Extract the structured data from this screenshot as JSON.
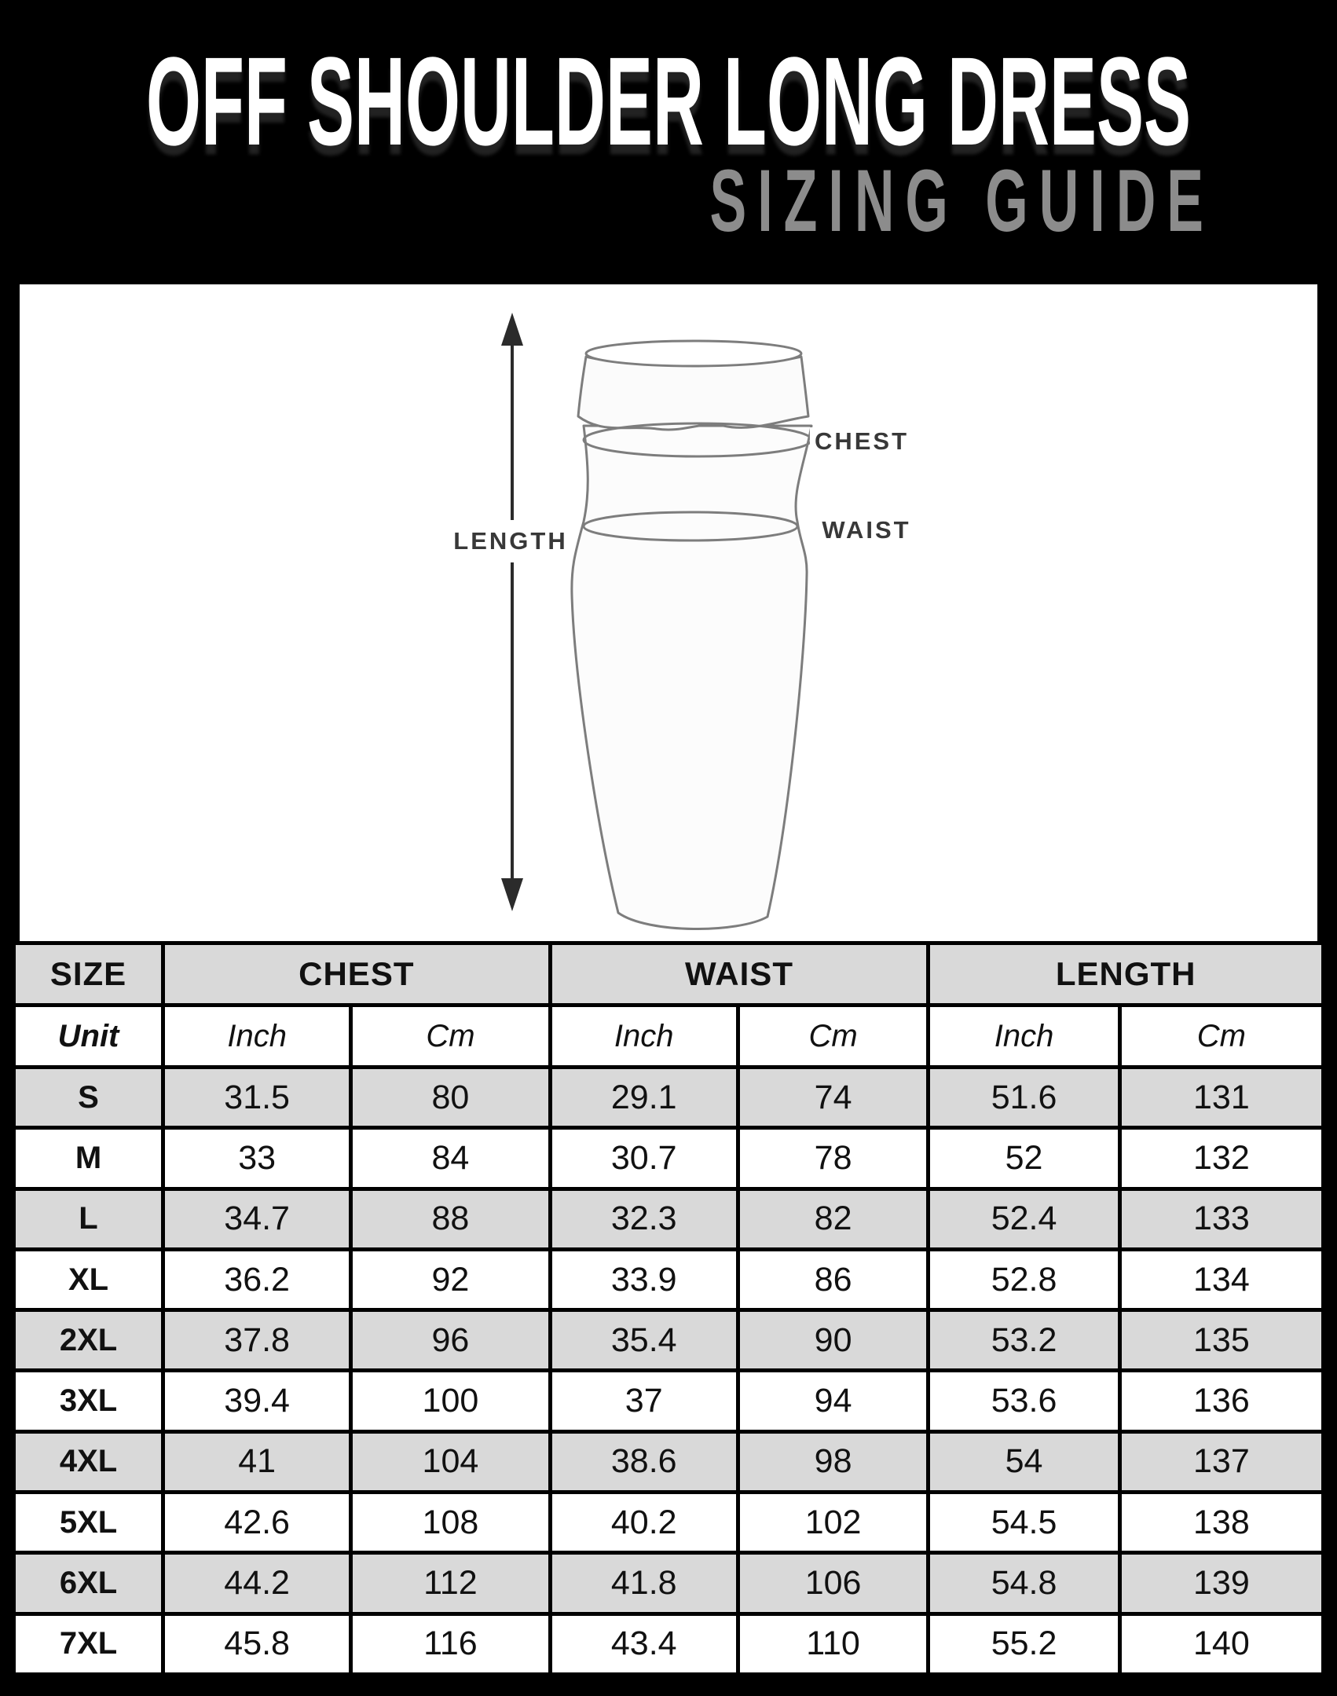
{
  "header": {
    "title": "OFF SHOULDER LONG DRESS",
    "subtitle": "SIZING GUIDE"
  },
  "diagram": {
    "labels": {
      "length": "LENGTH",
      "chest": "CHEST",
      "waist": "WAIST"
    }
  },
  "table": {
    "group_headers": [
      {
        "label": "SIZE",
        "span": 1
      },
      {
        "label": "CHEST",
        "span": 2
      },
      {
        "label": "WAIST",
        "span": 2
      },
      {
        "label": "LENGTH",
        "span": 2
      }
    ],
    "unit_row": {
      "label": "Unit",
      "units": [
        "Inch",
        "Cm",
        "Inch",
        "Cm",
        "Inch",
        "Cm"
      ]
    },
    "rows": [
      {
        "size": "S",
        "values": [
          "31.5",
          "80",
          "29.1",
          "74",
          "51.6",
          "131"
        ]
      },
      {
        "size": "M",
        "values": [
          "33",
          "84",
          "30.7",
          "78",
          "52",
          "132"
        ]
      },
      {
        "size": "L",
        "values": [
          "34.7",
          "88",
          "32.3",
          "82",
          "52.4",
          "133"
        ]
      },
      {
        "size": "XL",
        "values": [
          "36.2",
          "92",
          "33.9",
          "86",
          "52.8",
          "134"
        ]
      },
      {
        "size": "2XL",
        "values": [
          "37.8",
          "96",
          "35.4",
          "90",
          "53.2",
          "135"
        ]
      },
      {
        "size": "3XL",
        "values": [
          "39.4",
          "100",
          "37",
          "94",
          "53.6",
          "136"
        ]
      },
      {
        "size": "4XL",
        "values": [
          "41",
          "104",
          "38.6",
          "98",
          "54",
          "137"
        ]
      },
      {
        "size": "5XL",
        "values": [
          "42.6",
          "108",
          "40.2",
          "102",
          "54.5",
          "138"
        ]
      },
      {
        "size": "6XL",
        "values": [
          "44.2",
          "112",
          "41.8",
          "106",
          "54.8",
          "139"
        ]
      },
      {
        "size": "7XL",
        "values": [
          "45.8",
          "116",
          "43.4",
          "110",
          "55.2",
          "140"
        ]
      }
    ]
  },
  "colors": {
    "page_bg": "#000000",
    "panel_bg": "#ffffff",
    "title_color": "#ffffff",
    "subtitle_color": "#8c8c8c",
    "table_stripe": "#d9d9d9",
    "table_line": "#000000",
    "diagram_ink": "#2b2b2b",
    "dress_outline": "#7d7d7d"
  }
}
